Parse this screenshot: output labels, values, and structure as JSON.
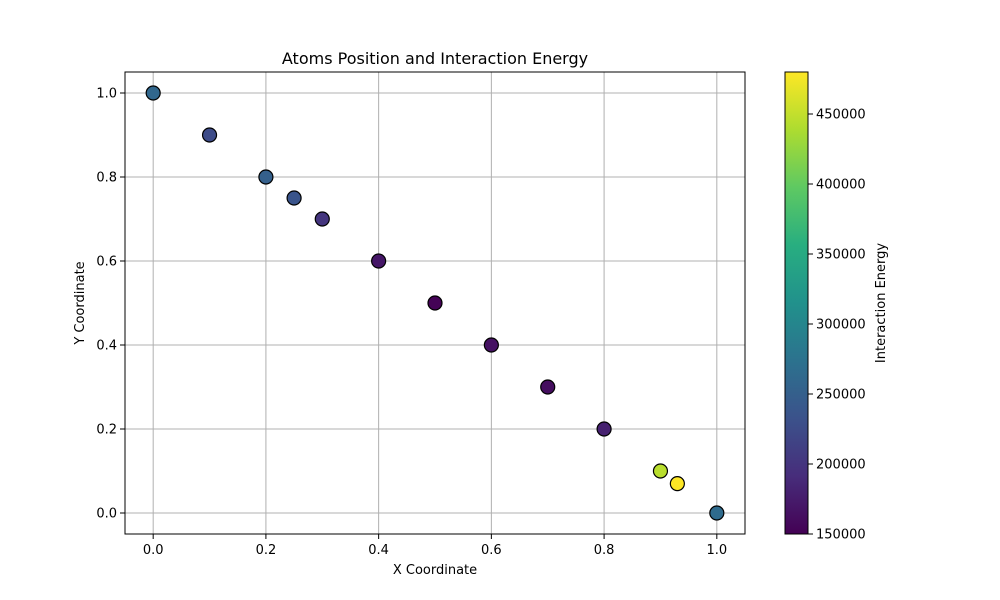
{
  "chart_data": {
    "type": "scatter",
    "title": "Atoms Position and Interaction Energy",
    "xlabel": "X Coordinate",
    "ylabel": "Y Coordinate",
    "xlim": [
      -0.05,
      1.05
    ],
    "ylim": [
      -0.05,
      1.05
    ],
    "xticks": [
      0.0,
      0.2,
      0.4,
      0.6,
      0.8,
      1.0
    ],
    "yticks": [
      0.0,
      0.2,
      0.4,
      0.6,
      0.8,
      1.0
    ],
    "xtick_labels": [
      "0.0",
      "0.2",
      "0.4",
      "0.6",
      "0.8",
      "1.0"
    ],
    "ytick_labels": [
      "0.0",
      "0.2",
      "0.4",
      "0.6",
      "0.8",
      "1.0"
    ],
    "grid": true,
    "colormap": "viridis",
    "colorbar": {
      "label": "Interaction Energy",
      "range": [
        150000,
        480000
      ],
      "ticks": [
        150000,
        200000,
        250000,
        300000,
        350000,
        400000,
        450000
      ],
      "tick_labels": [
        "150000",
        "200000",
        "250000",
        "300000",
        "350000",
        "400000",
        "450000"
      ]
    },
    "points": [
      {
        "x": 0.0,
        "y": 1.0,
        "energy": 260000
      },
      {
        "x": 0.1,
        "y": 0.9,
        "energy": 225000
      },
      {
        "x": 0.2,
        "y": 0.8,
        "energy": 250000
      },
      {
        "x": 0.25,
        "y": 0.75,
        "energy": 235000
      },
      {
        "x": 0.3,
        "y": 0.7,
        "energy": 200000
      },
      {
        "x": 0.4,
        "y": 0.6,
        "energy": 170000
      },
      {
        "x": 0.5,
        "y": 0.5,
        "energy": 152000
      },
      {
        "x": 0.6,
        "y": 0.4,
        "energy": 165000
      },
      {
        "x": 0.7,
        "y": 0.3,
        "energy": 162000
      },
      {
        "x": 0.8,
        "y": 0.2,
        "energy": 180000
      },
      {
        "x": 0.9,
        "y": 0.1,
        "energy": 445000
      },
      {
        "x": 0.93,
        "y": 0.07,
        "energy": 480000
      },
      {
        "x": 1.0,
        "y": 0.0,
        "energy": 265000
      }
    ]
  }
}
